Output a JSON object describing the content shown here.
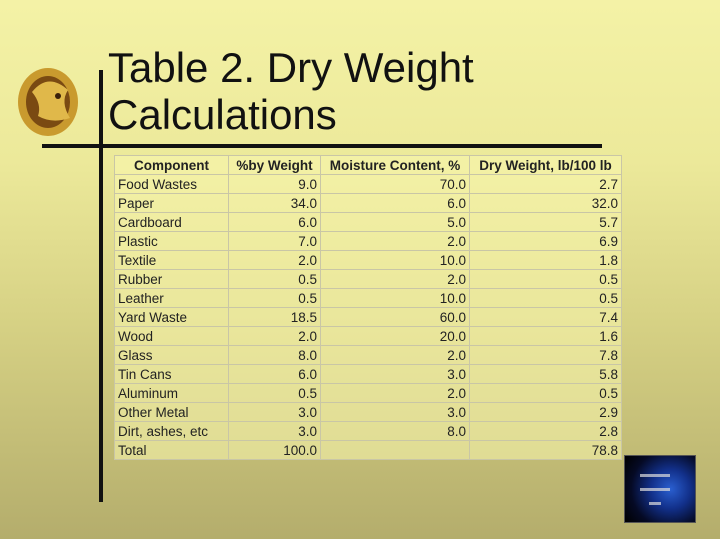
{
  "title_line1": "Table 2.  Dry Weight",
  "title_line2": "Calculations",
  "table": {
    "headers": [
      "Component",
      "%by Weight",
      "Moisture Content, %",
      "Dry Weight, lb/100 lb"
    ],
    "rows": [
      [
        "Food Wastes",
        "9.0",
        "70.0",
        "2.7"
      ],
      [
        "Paper",
        "34.0",
        "6.0",
        "32.0"
      ],
      [
        "Cardboard",
        "6.0",
        "5.0",
        "5.7"
      ],
      [
        "Plastic",
        "7.0",
        "2.0",
        "6.9"
      ],
      [
        "Textile",
        "2.0",
        "10.0",
        "1.8"
      ],
      [
        "Rubber",
        "0.5",
        "2.0",
        "0.5"
      ],
      [
        "Leather",
        "0.5",
        "10.0",
        "0.5"
      ],
      [
        "Yard Waste",
        "18.5",
        "60.0",
        "7.4"
      ],
      [
        "Wood",
        "2.0",
        "20.0",
        "1.6"
      ],
      [
        "Glass",
        "8.0",
        "2.0",
        "7.8"
      ],
      [
        "Tin Cans",
        "6.0",
        "3.0",
        "5.8"
      ],
      [
        "Aluminum",
        "0.5",
        "2.0",
        "0.5"
      ],
      [
        "Other Metal",
        "3.0",
        "3.0",
        "2.9"
      ],
      [
        "Dirt, ashes, etc",
        "3.0",
        "8.0",
        "2.8"
      ],
      [
        "Total",
        "100.0",
        "",
        "78.8"
      ]
    ]
  }
}
